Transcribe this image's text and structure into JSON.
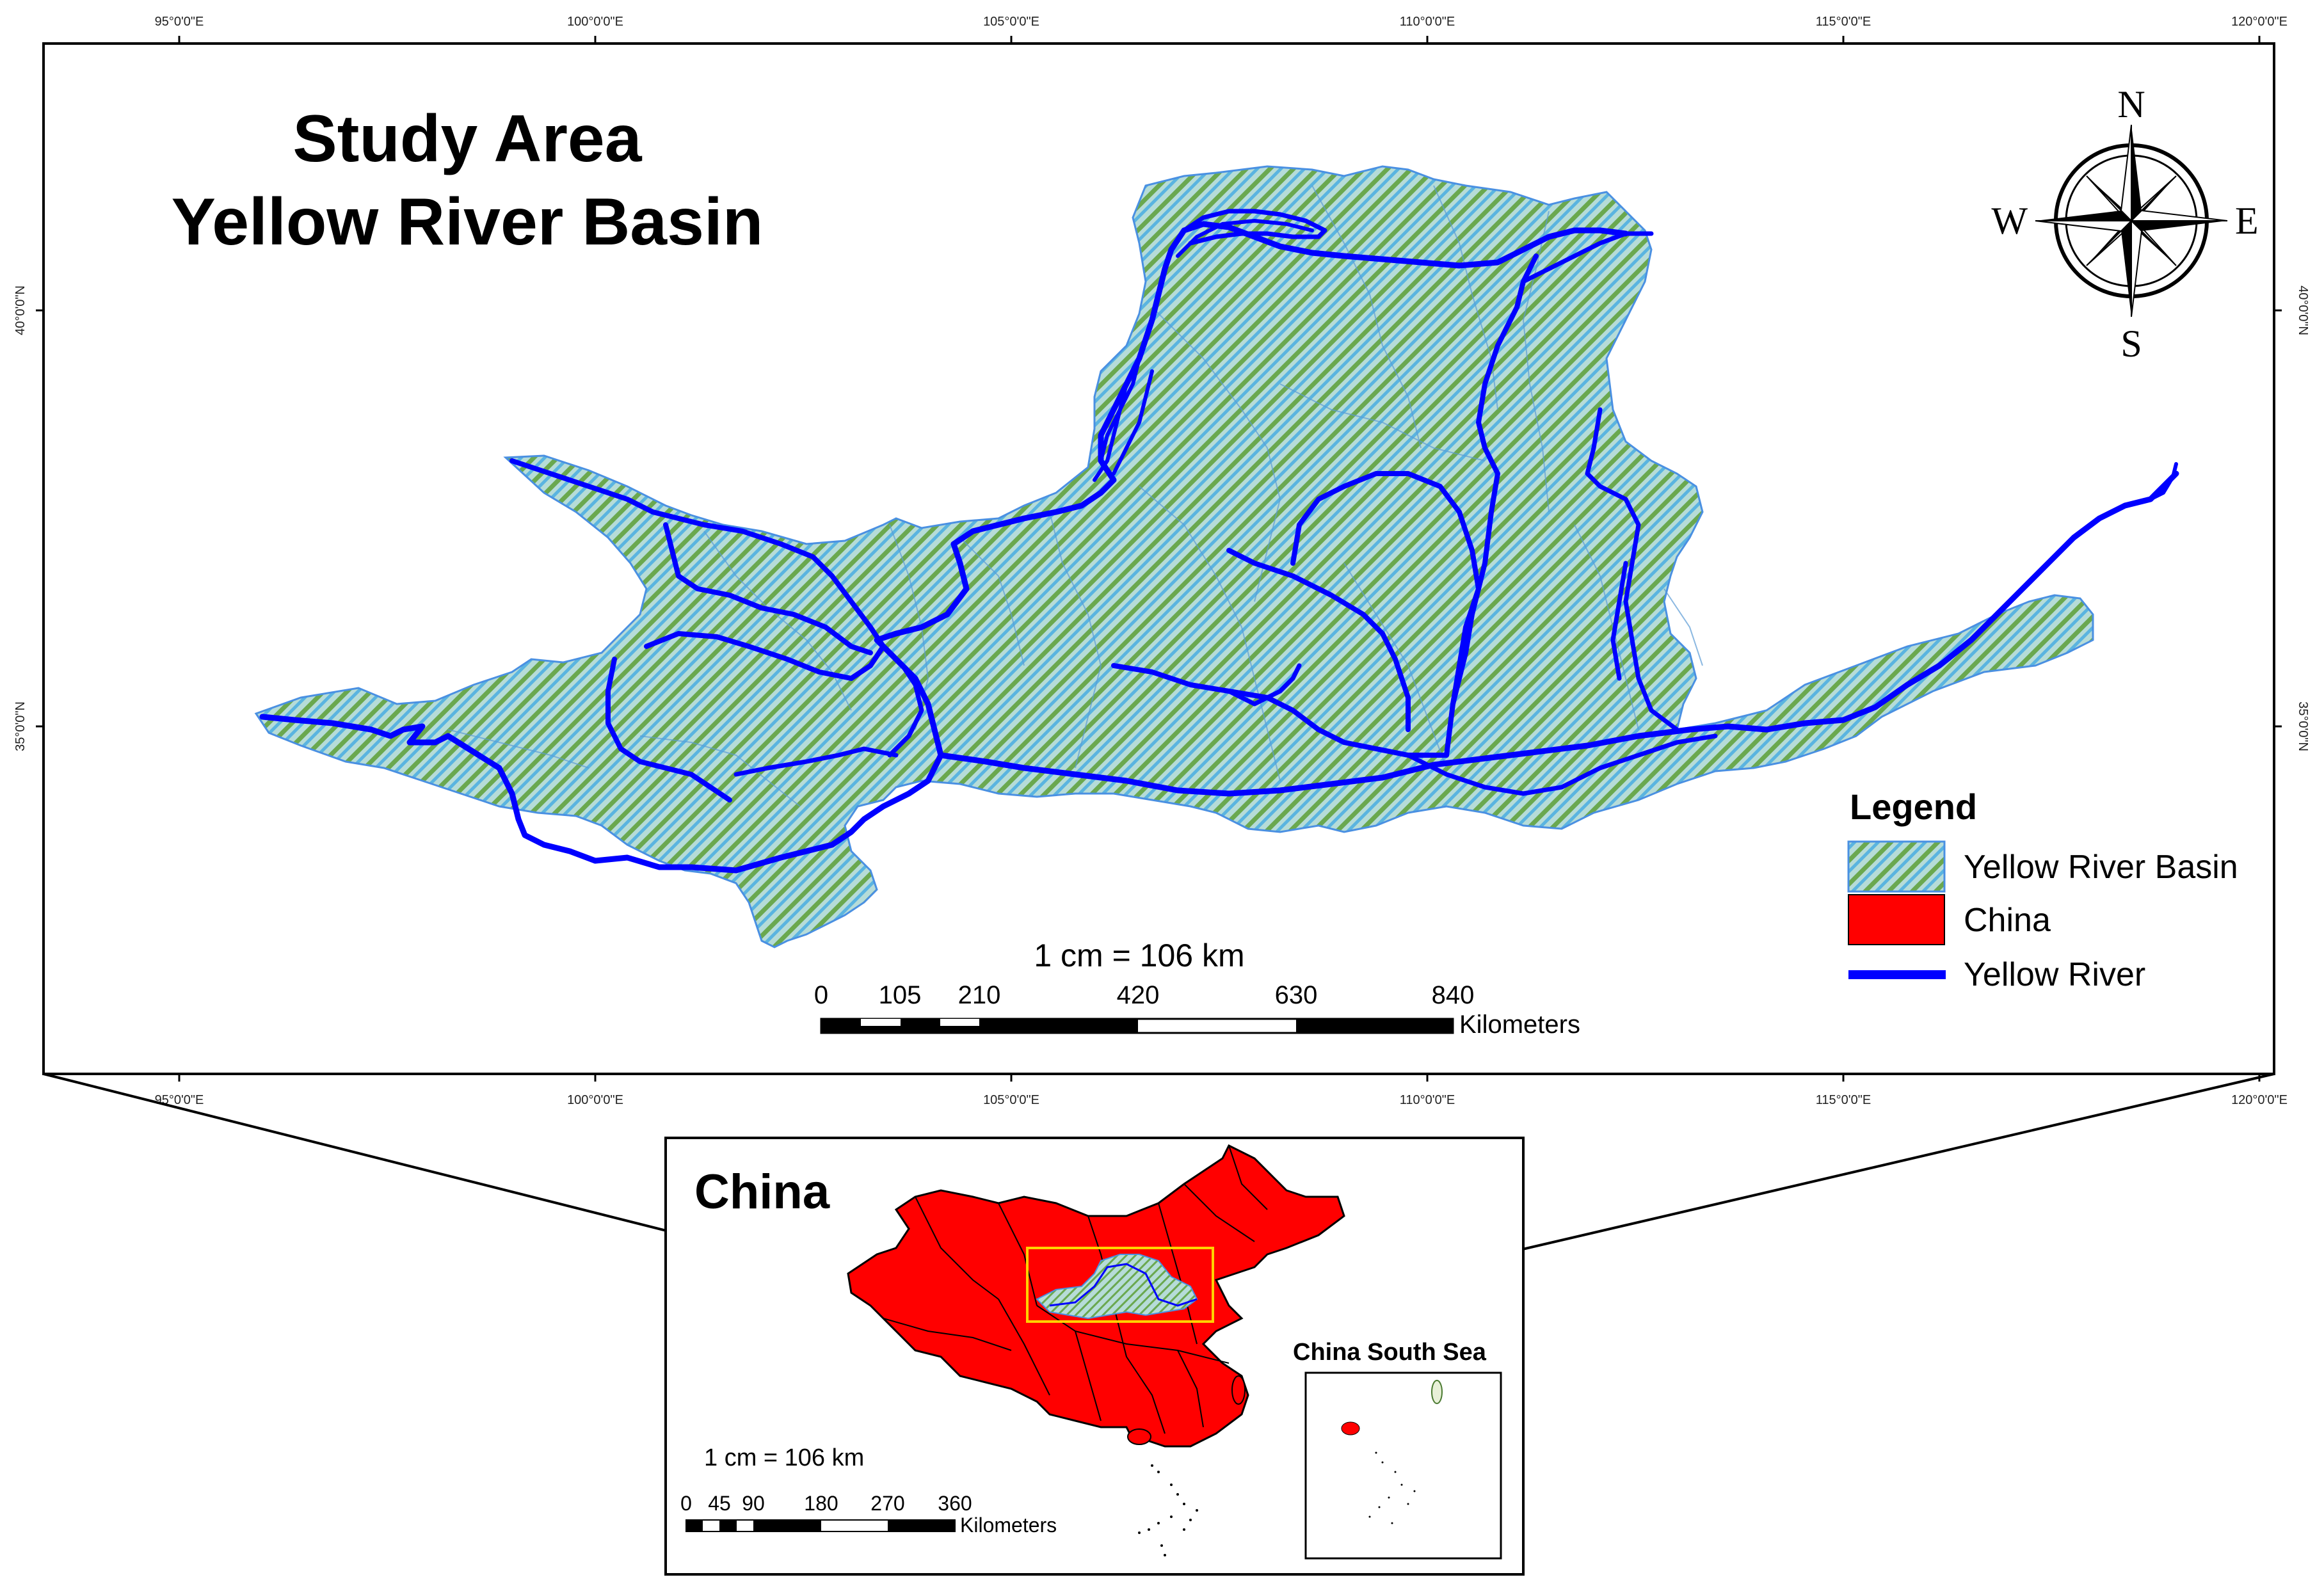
{
  "title": {
    "line1": "Study Area",
    "line2": "Yellow River Basin"
  },
  "graticule": {
    "longitudes": [
      {
        "label": "95°0'0\"E"
      },
      {
        "label": "100°0'0\"E"
      },
      {
        "label": "105°0'0\"E"
      },
      {
        "label": "110°0'0\"E"
      },
      {
        "label": "115°0'0\"E"
      },
      {
        "label": "120°0'0\"E"
      }
    ],
    "latitudes": [
      {
        "label": "40°0'0\"N"
      },
      {
        "label": "35°0'0\"N"
      }
    ]
  },
  "compass": {
    "n": "N",
    "s": "S",
    "e": "E",
    "w": "W"
  },
  "legend": {
    "title": "Legend",
    "items": [
      {
        "label": "Yellow River Basin",
        "symbol": "hatch",
        "color": "#7ec8c0"
      },
      {
        "label": "China",
        "symbol": "fill",
        "color": "#ff0000"
      },
      {
        "label": "Yellow River",
        "symbol": "line",
        "color": "#0000ff"
      }
    ]
  },
  "scale_bar": {
    "ratio": "1 cm = 106 km",
    "ticks": [
      "0",
      "105",
      "210",
      "420",
      "630",
      "840"
    ],
    "unit": "Kilometers"
  },
  "inset": {
    "title": "China",
    "sea_label": "China South Sea",
    "scale_ratio": "1 cm = 106 km",
    "scale_ticks": [
      "0",
      "45",
      "90",
      "180",
      "270",
      "360"
    ],
    "scale_unit": "Kilometers"
  },
  "colors": {
    "river": "#0000ff",
    "basin_fill": "#a8d8d0",
    "basin_hatch": "#6aa84f",
    "basin_outline": "#4a90e2",
    "china": "#ff0000",
    "inset_box": "#ffd200"
  }
}
